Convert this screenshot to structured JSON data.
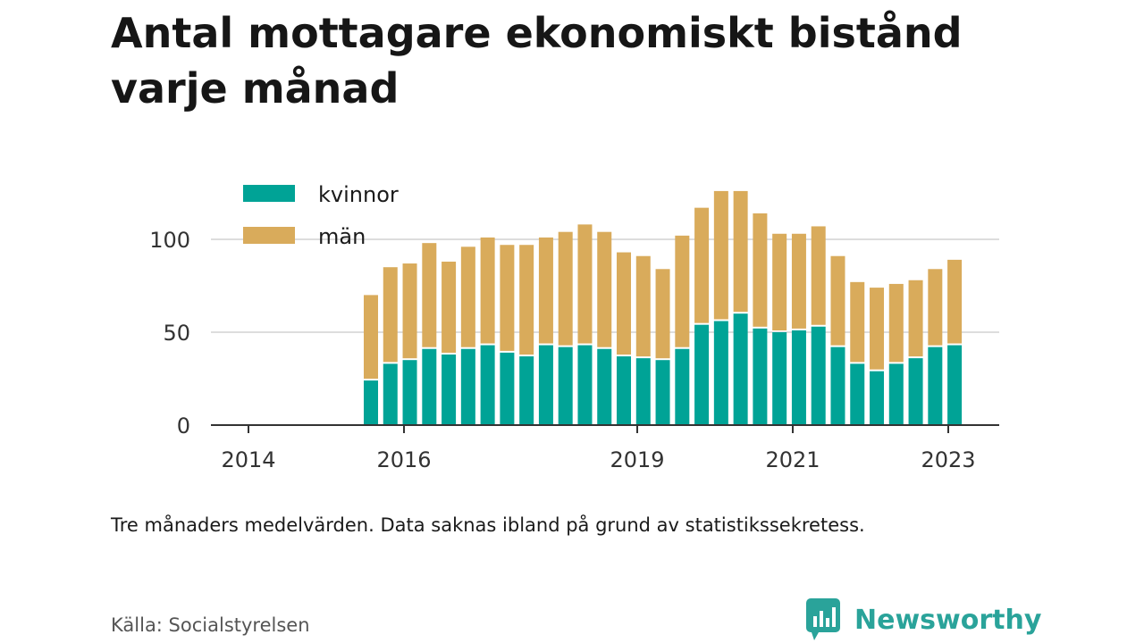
{
  "title": "Antal mottagare ekonomiskt bistånd varje månad",
  "note": "Tre månaders medelvärden. Data saknas ibland på grund av statistikssekretess.",
  "source": "Källa: Socialstyrelsen",
  "brand": "Newsworthy",
  "colors": {
    "kvinnor": "#00a396",
    "man": "#d9ab5b",
    "grid": "#dddddd",
    "axis": "#333333",
    "brand": "#2aa39a"
  },
  "chart_data": {
    "type": "bar",
    "stacked": true,
    "x_ticks": [
      "2014",
      "2016",
      "2019",
      "2021",
      "2023"
    ],
    "y_ticks": [
      "0",
      "50",
      "100"
    ],
    "ylim": [
      0,
      130
    ],
    "grid": true,
    "legend_position": "top-left",
    "series": [
      {
        "name": "kvinnor",
        "values": [
          24,
          33,
          35,
          41,
          38,
          41,
          43,
          39,
          37,
          43,
          42,
          43,
          41,
          37,
          36,
          35,
          41,
          54,
          56,
          60,
          52,
          50,
          51,
          53,
          42,
          33,
          29,
          33,
          36,
          42,
          43
        ]
      },
      {
        "name": "män",
        "values": [
          46,
          52,
          52,
          57,
          50,
          55,
          58,
          58,
          60,
          58,
          62,
          65,
          63,
          56,
          55,
          49,
          61,
          63,
          70,
          66,
          62,
          53,
          52,
          54,
          49,
          44,
          45,
          43,
          42,
          42,
          46
        ]
      }
    ]
  }
}
